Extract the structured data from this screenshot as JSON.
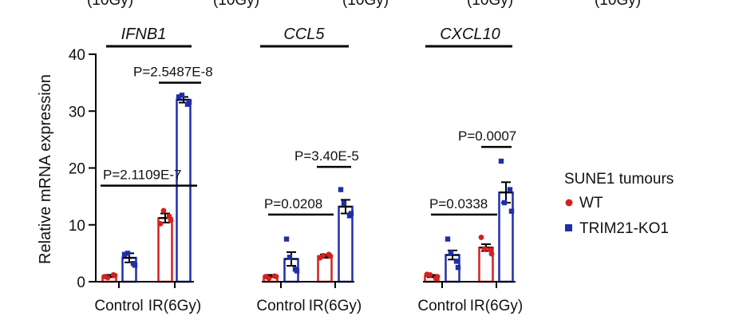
{
  "chart_data": {
    "type": "bar",
    "top_clipped_labels": [
      "(10Gy)",
      "(10Gy)",
      "(10Gy)",
      "(10Gy)",
      "(10Gy)"
    ],
    "ylabel": "Relative mRNA expression",
    "ylim": [
      0,
      40
    ],
    "yticks": [
      0,
      10,
      20,
      30,
      40
    ],
    "legend": {
      "title": "SUNE1 tumours",
      "placement": "right",
      "entries": [
        {
          "label": "WT",
          "color": "#d42020",
          "marker": "circle"
        },
        {
          "label": "TRIM21-KO1",
          "color": "#1f2fa8",
          "marker": "square"
        }
      ]
    },
    "panels": [
      {
        "gene": "IFNB1",
        "categories": [
          "Control",
          "IR(6Gy)"
        ],
        "series": [
          {
            "name": "WT",
            "values": [
              1.0,
              11.2
            ],
            "sem": [
              0.2,
              0.8
            ],
            "points": [
              [
                0.9,
                1.2,
                0.7,
                1.1
              ],
              [
                10.2,
                11.5,
                12.5,
                10.8
              ]
            ]
          },
          {
            "name": "TRIM21-KO1",
            "values": [
              4.2,
              32.0
            ],
            "sem": [
              0.8,
              0.5
            ],
            "points": [
              [
                4.8,
                3.2,
                5.0,
                2.9
              ],
              [
                32.5,
                31.2,
                32.8,
                31.6
              ]
            ]
          }
        ],
        "comparisons": [
          {
            "label": "P=2.1109E-7",
            "value": 16.9
          },
          {
            "label": "P=2.5487E-8",
            "value": 35.0
          }
        ]
      },
      {
        "gene": "CCL5",
        "categories": [
          "Control",
          "IR(6Gy)"
        ],
        "series": [
          {
            "name": "WT",
            "values": [
              1.0,
              4.5
            ],
            "sem": [
              0.2,
              0.3
            ],
            "points": [
              [
                0.9,
                1.0,
                0.6,
                0.9
              ],
              [
                4.2,
                4.8,
                4.6,
                4.5
              ]
            ]
          },
          {
            "name": "TRIM21-KO1",
            "values": [
              4.0,
              13.2
            ],
            "sem": [
              1.2,
              1.2
            ],
            "points": [
              [
                7.5,
                2.2,
                4.3,
                1.9
              ],
              [
                16.2,
                11.6,
                13.8,
                12.0
              ]
            ]
          }
        ],
        "comparisons": [
          {
            "label": "P=0.0208",
            "value": 11.8
          },
          {
            "label": "P=3.40E-5",
            "value": 20.2
          }
        ]
      },
      {
        "gene": "CXCL10",
        "categories": [
          "Control",
          "IR(6Gy)"
        ],
        "series": [
          {
            "name": "WT",
            "values": [
              1.0,
              6.0
            ],
            "sem": [
              0.2,
              0.6
            ],
            "points": [
              [
                1.3,
                0.6,
                1.2,
                0.9
              ],
              [
                7.8,
                5.6,
                5.8,
                4.9
              ]
            ]
          },
          {
            "name": "TRIM21-KO1",
            "values": [
              4.7,
              15.7
            ],
            "sem": [
              0.8,
              1.8
            ],
            "points": [
              [
                7.5,
                3.6,
                5.1,
                2.5
              ],
              [
                21.2,
                16.2,
                13.9,
                12.4
              ]
            ]
          }
        ],
        "comparisons": [
          {
            "label": "P=0.0338",
            "value": 11.8
          },
          {
            "label": "P=0.0007",
            "value": 23.7
          }
        ]
      }
    ]
  }
}
